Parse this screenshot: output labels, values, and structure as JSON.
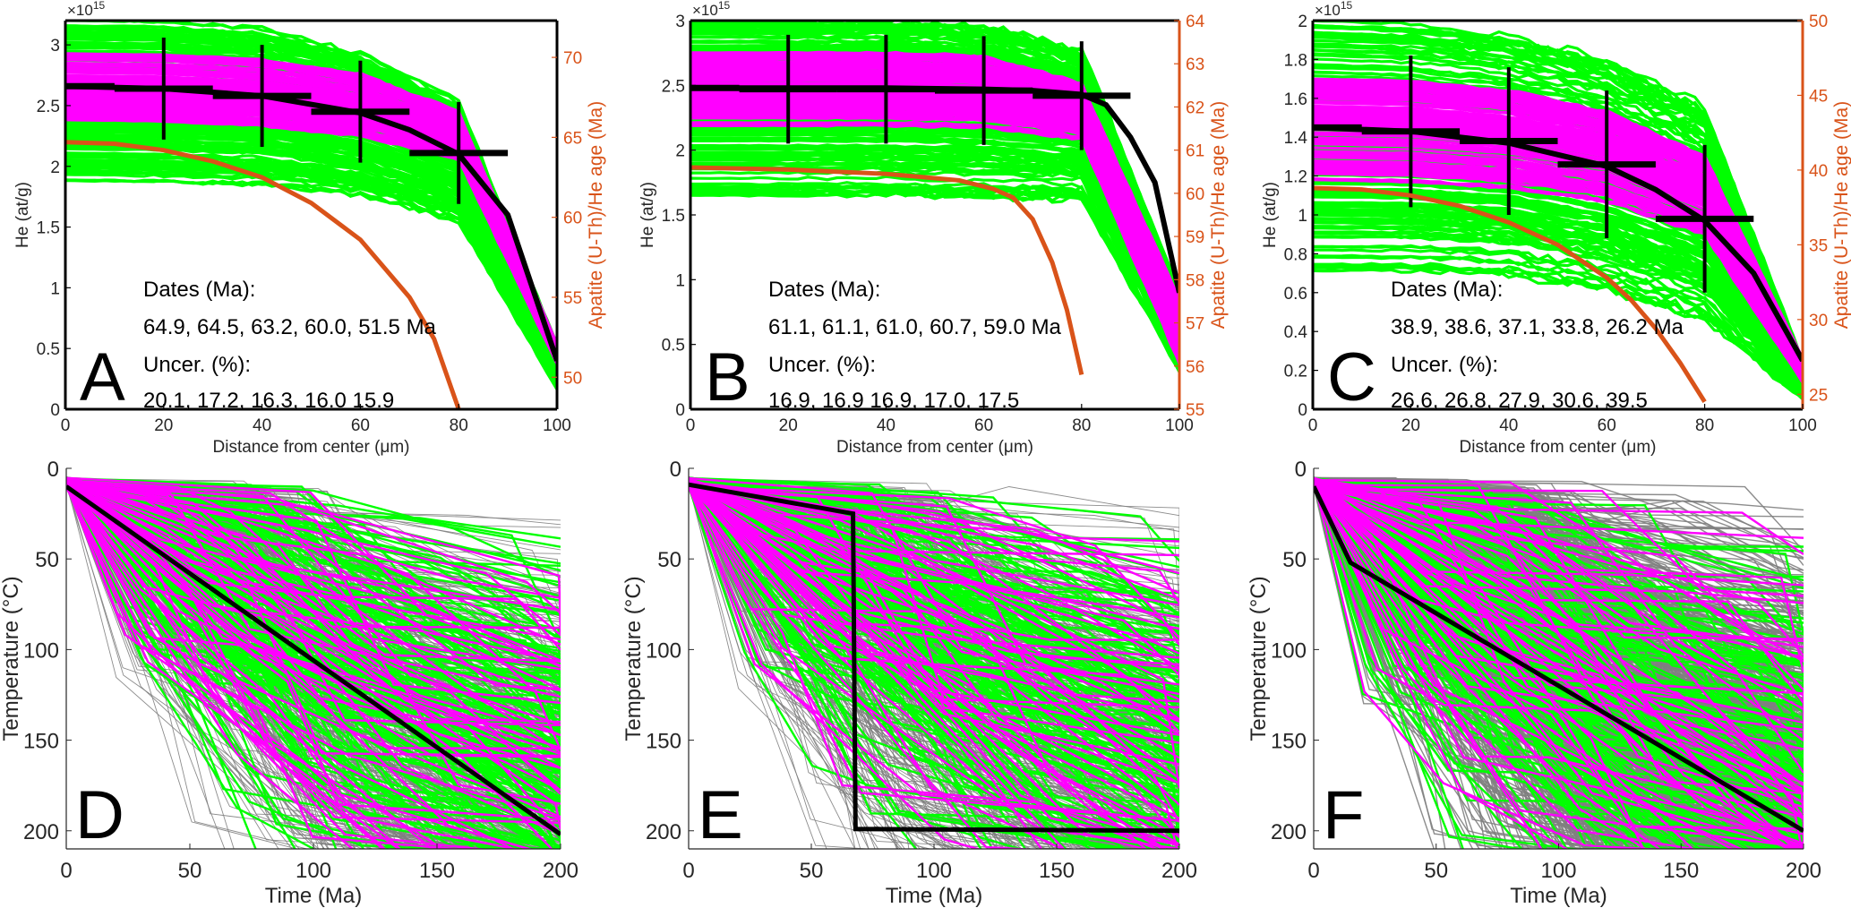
{
  "figure": {
    "colors": {
      "accepted_path": "#00FF00",
      "good_path": "#FF00FF",
      "rejected_path": "#808080",
      "best_fit": "#000000",
      "age_curve": "#D95319",
      "axis": "#262626"
    }
  },
  "chart_data": [
    {
      "id": "A",
      "type": "line",
      "panel_letter": "A",
      "xlabel": "Distance from center (μm)",
      "ylabel": "He (at/g)",
      "ylabel_right": "Apatite (U-Th)/He age (Ma)",
      "y_exponent_label": "×10",
      "y_exponent": "15",
      "xlim": [
        0,
        100
      ],
      "ylim": [
        0,
        3.2
      ],
      "ylim_right": [
        48,
        72.3
      ],
      "xticks": [
        "0",
        "20",
        "40",
        "60",
        "80",
        "100"
      ],
      "xtick_values": [
        0,
        20,
        40,
        60,
        80,
        100
      ],
      "yticks": [
        "0",
        "0.5",
        "1",
        "1.5",
        "2",
        "2.5",
        "3"
      ],
      "ytick_values": [
        0,
        0.5,
        1,
        1.5,
        2,
        2.5,
        3
      ],
      "yticks_right": [
        "50",
        "55",
        "60",
        "65",
        "70"
      ],
      "ytick_right_values": [
        50,
        55,
        60,
        65,
        70
      ],
      "annotation": {
        "dates_label": "Dates (Ma):",
        "dates": "64.9, 64.5, 63.2, 60.0, 51.5 Ma",
        "uncer_label": "Uncer. (%):",
        "uncer": "20.1, 17.2, 16.3, 16.0 15.9"
      },
      "green_band": {
        "center": [
          2.55,
          2.54,
          2.5,
          2.35,
          2.05,
          0.35
        ],
        "half_width": [
          0.68,
          0.68,
          0.66,
          0.6,
          0.5,
          0.18
        ]
      },
      "magenta_band": {
        "center": [
          2.65,
          2.64,
          2.6,
          2.5,
          2.25,
          0.45
        ],
        "half_width": [
          0.28,
          0.28,
          0.28,
          0.26,
          0.2,
          0.08
        ]
      },
      "band_x": [
        0,
        20,
        40,
        60,
        80,
        100
      ],
      "best_fit": {
        "x": [
          0,
          20,
          40,
          60,
          70,
          80,
          90,
          100
        ],
        "y": [
          2.66,
          2.64,
          2.58,
          2.44,
          2.3,
          2.1,
          1.6,
          0.4
        ]
      },
      "age_curve": {
        "x": [
          0,
          10,
          20,
          30,
          40,
          50,
          60,
          70,
          75,
          80
        ],
        "y": [
          64.7,
          64.6,
          64.2,
          63.5,
          62.5,
          60.9,
          58.6,
          55.0,
          52.4,
          48.0
        ]
      },
      "data_points": [
        {
          "x": 20,
          "y": 2.64,
          "xerr": 10,
          "yerr": 0.42
        },
        {
          "x": 40,
          "y": 2.58,
          "xerr": 10,
          "yerr": 0.42
        },
        {
          "x": 60,
          "y": 2.45,
          "xerr": 10,
          "yerr": 0.42
        },
        {
          "x": 80,
          "y": 2.11,
          "xerr": 10,
          "yerr": 0.42
        }
      ]
    },
    {
      "id": "B",
      "type": "line",
      "panel_letter": "B",
      "xlabel": "Distance from center (μm)",
      "ylabel": "He (at/g)",
      "ylabel_right": "Apatite (U-Th)/He age (Ma)",
      "y_exponent_label": "×10",
      "y_exponent": "15",
      "xlim": [
        0,
        100
      ],
      "ylim": [
        0,
        3
      ],
      "ylim_right": [
        55,
        64
      ],
      "xticks": [
        "0",
        "20",
        "40",
        "60",
        "80",
        "100"
      ],
      "xtick_values": [
        0,
        20,
        40,
        60,
        80,
        100
      ],
      "yticks": [
        "0",
        "0.5",
        "1",
        "1.5",
        "2",
        "2.5",
        "3"
      ],
      "ytick_values": [
        0,
        0.5,
        1,
        1.5,
        2,
        2.5,
        3
      ],
      "yticks_right": [
        "55",
        "56",
        "57",
        "58",
        "59",
        "60",
        "61",
        "62",
        "63",
        "64"
      ],
      "ytick_right_values": [
        55,
        56,
        57,
        58,
        59,
        60,
        61,
        62,
        63,
        64
      ],
      "annotation": {
        "dates_label": "Dates (Ma):",
        "dates": "61.1, 61.1, 61.0, 60.7, 59.0 Ma",
        "uncer_label": "Uncer. (%):",
        "uncer": "16.9, 16.9 16.9, 17.0, 17.5"
      },
      "green_band": {
        "center": [
          2.32,
          2.32,
          2.32,
          2.3,
          2.2,
          0.6
        ],
        "half_width": [
          0.67,
          0.67,
          0.67,
          0.66,
          0.58,
          0.3
        ]
      },
      "magenta_band": {
        "center": [
          2.47,
          2.47,
          2.47,
          2.45,
          2.3,
          0.6
        ],
        "half_width": [
          0.29,
          0.29,
          0.29,
          0.28,
          0.22,
          0.25
        ]
      },
      "band_x": [
        0,
        20,
        40,
        60,
        80,
        100
      ],
      "best_fit": {
        "x": [
          0,
          20,
          40,
          60,
          70,
          80,
          85,
          90,
          95,
          100
        ],
        "y": [
          2.48,
          2.48,
          2.48,
          2.47,
          2.46,
          2.43,
          2.35,
          2.1,
          1.75,
          0.9
        ]
      },
      "age_curve": {
        "x": [
          0,
          20,
          40,
          55,
          62,
          66,
          70,
          74,
          77,
          80
        ],
        "y": [
          60.6,
          60.55,
          60.45,
          60.3,
          60.1,
          59.9,
          59.4,
          58.4,
          57.3,
          55.8
        ]
      },
      "data_points": [
        {
          "x": 20,
          "y": 2.47,
          "xerr": 10,
          "yerr": 0.42
        },
        {
          "x": 40,
          "y": 2.47,
          "xerr": 10,
          "yerr": 0.42
        },
        {
          "x": 60,
          "y": 2.46,
          "xerr": 10,
          "yerr": 0.42
        },
        {
          "x": 80,
          "y": 2.42,
          "xerr": 10,
          "yerr": 0.42
        }
      ]
    },
    {
      "id": "C",
      "type": "line",
      "panel_letter": "C",
      "xlabel": "Distance from center (μm)",
      "ylabel": "He (at/g)",
      "ylabel_right": "Apatite (U-Th)/He age (Ma)",
      "y_exponent_label": "×10",
      "y_exponent": "15",
      "xlim": [
        0,
        100
      ],
      "ylim": [
        0,
        2
      ],
      "ylim_right": [
        24,
        50
      ],
      "xticks": [
        "0",
        "20",
        "40",
        "60",
        "80",
        "100"
      ],
      "xtick_values": [
        0,
        20,
        40,
        60,
        80,
        100
      ],
      "yticks": [
        "0",
        "0.2",
        "0.4",
        "0.6",
        "0.8",
        "1",
        "1.2",
        "1.4",
        "1.6",
        "1.8",
        "2"
      ],
      "ytick_values": [
        0,
        0.2,
        0.4,
        0.6,
        0.8,
        1,
        1.2,
        1.4,
        1.6,
        1.8,
        2
      ],
      "yticks_right": [
        "25",
        "30",
        "35",
        "40",
        "45",
        "50"
      ],
      "ytick_right_values": [
        25,
        30,
        35,
        40,
        45,
        50
      ],
      "annotation": {
        "dates_label": "Dates (Ma):",
        "dates": "38.9, 38.6, 37.1, 33.8, 26.2 Ma",
        "uncer_label": "Uncer. (%):",
        "uncer": "26.6, 26.8, 27.9, 30.6, 39.5"
      },
      "green_band": {
        "center": [
          1.35,
          1.34,
          1.3,
          1.2,
          1.0,
          0.15
        ],
        "half_width": [
          0.65,
          0.64,
          0.62,
          0.6,
          0.55,
          0.1
        ]
      },
      "magenta_band": {
        "center": [
          1.44,
          1.43,
          1.39,
          1.3,
          1.1,
          0.2
        ],
        "half_width": [
          0.26,
          0.26,
          0.25,
          0.23,
          0.2,
          0.06
        ]
      },
      "band_x": [
        0,
        20,
        40,
        60,
        80,
        100
      ],
      "best_fit": {
        "x": [
          0,
          20,
          40,
          60,
          70,
          80,
          90,
          100
        ],
        "y": [
          1.45,
          1.43,
          1.37,
          1.25,
          1.13,
          0.97,
          0.7,
          0.25
        ]
      },
      "age_curve": {
        "x": [
          0,
          10,
          20,
          30,
          40,
          50,
          60,
          65,
          70,
          75,
          80
        ],
        "y": [
          38.8,
          38.7,
          38.3,
          37.6,
          36.5,
          35.0,
          32.8,
          31.3,
          29.4,
          27.1,
          24.5
        ]
      },
      "data_points": [
        {
          "x": 20,
          "y": 1.43,
          "xerr": 10,
          "yerr": 0.39
        },
        {
          "x": 40,
          "y": 1.38,
          "xerr": 10,
          "yerr": 0.38
        },
        {
          "x": 60,
          "y": 1.26,
          "xerr": 10,
          "yerr": 0.38
        },
        {
          "x": 80,
          "y": 0.98,
          "xerr": 10,
          "yerr": 0.38
        }
      ]
    },
    {
      "id": "D",
      "type": "line",
      "panel_letter": "D",
      "xlabel": "Time (Ma)",
      "ylabel": "Temperature (°C)",
      "xlim": [
        0,
        200
      ],
      "ylim": [
        210,
        0
      ],
      "xticks": [
        "0",
        "50",
        "100",
        "150",
        "200"
      ],
      "xtick_values": [
        0,
        50,
        100,
        150,
        200
      ],
      "yticks": [
        "0",
        "50",
        "100",
        "150",
        "200"
      ],
      "ytick_values": [
        0,
        50,
        100,
        150,
        200
      ],
      "best_fit": {
        "x": [
          0,
          200
        ],
        "y": [
          10,
          202
        ]
      },
      "seed": 11
    },
    {
      "id": "E",
      "type": "line",
      "panel_letter": "E",
      "xlabel": "Time (Ma)",
      "ylabel": "Temperature (°C)",
      "xlim": [
        0,
        200
      ],
      "ylim": [
        210,
        0
      ],
      "xticks": [
        "0",
        "50",
        "100",
        "150",
        "200"
      ],
      "xtick_values": [
        0,
        50,
        100,
        150,
        200
      ],
      "yticks": [
        "0",
        "50",
        "100",
        "150",
        "200"
      ],
      "ytick_values": [
        0,
        50,
        100,
        150,
        200
      ],
      "best_fit": {
        "x": [
          0,
          67,
          68,
          200
        ],
        "y": [
          9,
          25,
          199,
          200
        ]
      },
      "seed": 23
    },
    {
      "id": "F",
      "type": "line",
      "panel_letter": "F",
      "xlabel": "Time (Ma)",
      "ylabel": "Temperature (°C)",
      "xlim": [
        0,
        200
      ],
      "ylim": [
        210,
        0
      ],
      "xticks": [
        "0",
        "50",
        "100",
        "150",
        "200"
      ],
      "xtick_values": [
        0,
        50,
        100,
        150,
        200
      ],
      "yticks": [
        "0",
        "50",
        "100",
        "150",
        "200"
      ],
      "ytick_values": [
        0,
        50,
        100,
        150,
        200
      ],
      "best_fit": {
        "x": [
          0,
          15,
          200
        ],
        "y": [
          10,
          52,
          200
        ]
      },
      "seed": 37
    }
  ]
}
